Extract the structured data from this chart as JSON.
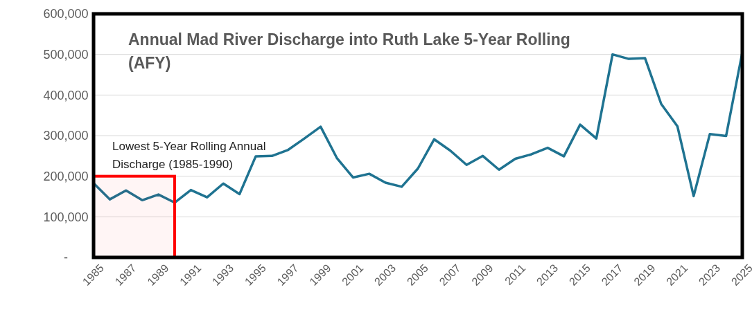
{
  "chart_data": {
    "type": "line",
    "title": "Annual Mad River Discharge into Ruth Lake 5-Year Rolling (AFY)",
    "x": [
      1985,
      1986,
      1987,
      1988,
      1989,
      1990,
      1991,
      1992,
      1993,
      1994,
      1995,
      1996,
      1997,
      1998,
      1999,
      2000,
      2001,
      2002,
      2003,
      2004,
      2005,
      2006,
      2007,
      2008,
      2009,
      2010,
      2011,
      2012,
      2013,
      2014,
      2015,
      2016,
      2017,
      2018,
      2019,
      2020,
      2021,
      2022,
      2023,
      2024,
      2025
    ],
    "series": [
      {
        "color": "#1f7391",
        "values": [
          183000,
          143000,
          165000,
          141000,
          155000,
          135000,
          166000,
          148000,
          182000,
          156000,
          249000,
          250000,
          265000,
          293000,
          322000,
          245000,
          197000,
          206000,
          184000,
          174000,
          219000,
          291000,
          263000,
          228000,
          250000,
          216000,
          243000,
          254000,
          270000,
          249000,
          327000,
          293000,
          500000,
          489000,
          491000,
          378000,
          323000,
          151000,
          304000,
          299000,
          505000
        ]
      }
    ],
    "xlim": [
      1985,
      2025
    ],
    "xticks": [
      1985,
      1987,
      1989,
      1991,
      1993,
      1995,
      1997,
      1999,
      2001,
      2003,
      2005,
      2007,
      2009,
      2011,
      2013,
      2015,
      2017,
      2019,
      2021,
      2023,
      2025
    ],
    "ylim": [
      0,
      600000
    ],
    "yticks": [
      {
        "value": 0,
        "label": "-"
      },
      {
        "value": 100000,
        "label": "100,000"
      },
      {
        "value": 200000,
        "label": "200,000"
      },
      {
        "value": 300000,
        "label": "300,000"
      },
      {
        "value": 400000,
        "label": "400,000"
      },
      {
        "value": 500000,
        "label": "500,000"
      },
      {
        "value": 600000,
        "label": "600,000"
      }
    ],
    "grid": "y",
    "marker": "none",
    "line_style": "solid",
    "bands": [
      {
        "axis": "x",
        "from": 1985,
        "to": 1990,
        "label": "Lowest 5-Year Rolling Annual Discharge (1985-1990)",
        "color": "#ff0000"
      }
    ]
  }
}
